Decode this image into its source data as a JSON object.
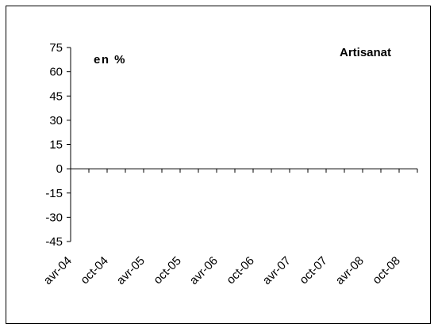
{
  "chart_data": {
    "type": "line",
    "title": "Artisanat",
    "unit_label": "en %",
    "xlabel": "",
    "ylabel": "",
    "categories": [
      "avr-04",
      "oct-04",
      "avr-05",
      "oct-05",
      "avr-06",
      "oct-06",
      "avr-07",
      "oct-07",
      "avr-08",
      "oct-08"
    ],
    "ylim": [
      -45,
      75
    ],
    "yticks": [
      75,
      60,
      45,
      30,
      15,
      0,
      -15,
      -30,
      -45
    ],
    "series": [],
    "grid": false,
    "legend": "none"
  }
}
